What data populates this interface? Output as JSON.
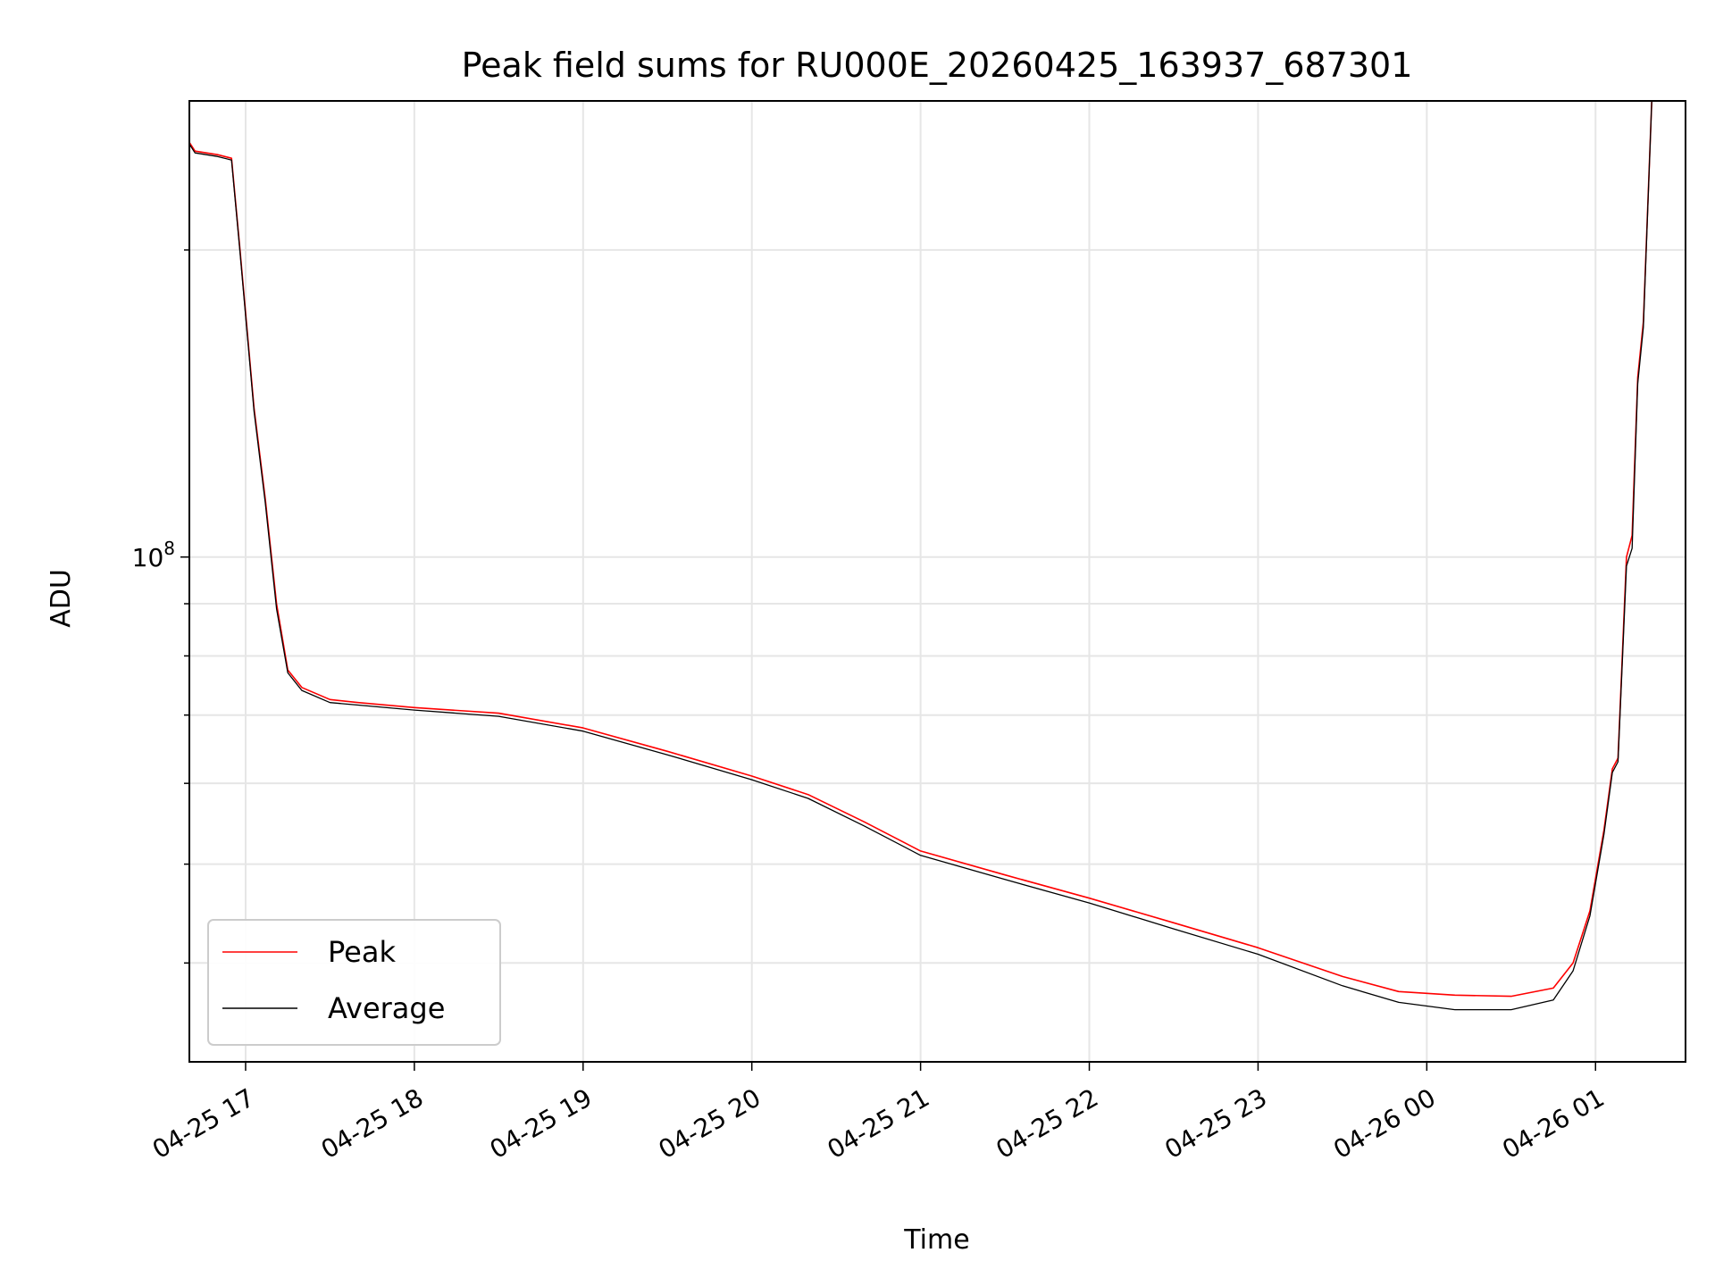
{
  "chart_data": {
    "type": "line",
    "title": "Peak field sums for RU000E_20260425_163937_687301",
    "xlabel": "Time",
    "ylabel": "ADU",
    "y_scale": "log",
    "grid": true,
    "legend_position": "lower-left",
    "xlim": [
      "2026-04-25 16:40",
      "2026-04-26 01:32"
    ],
    "ylim": [
      32000000,
      280000000
    ],
    "x_ticks": [
      {
        "t": "2026-04-25 17:00",
        "label": "04-25 17"
      },
      {
        "t": "2026-04-25 18:00",
        "label": "04-25 18"
      },
      {
        "t": "2026-04-25 19:00",
        "label": "04-25 19"
      },
      {
        "t": "2026-04-25 20:00",
        "label": "04-25 20"
      },
      {
        "t": "2026-04-25 21:00",
        "label": "04-25 21"
      },
      {
        "t": "2026-04-25 22:00",
        "label": "04-25 22"
      },
      {
        "t": "2026-04-25 23:00",
        "label": "04-25 23"
      },
      {
        "t": "2026-04-26 00:00",
        "label": "04-26 00"
      },
      {
        "t": "2026-04-26 01:00",
        "label": "04-26 01"
      }
    ],
    "y_major_ticks": [
      {
        "value": 100000000,
        "base": "10",
        "exp": "8"
      }
    ],
    "series": [
      {
        "name": "Peak",
        "color": "#ff0000",
        "points": [
          [
            "2026-04-25 16:40",
            255000000
          ],
          [
            "2026-04-25 16:42",
            250000000
          ],
          [
            "2026-04-25 16:50",
            248000000
          ],
          [
            "2026-04-25 16:55",
            246000000
          ],
          [
            "2026-04-25 16:58",
            200000000
          ],
          [
            "2026-04-25 17:03",
            140000000
          ],
          [
            "2026-04-25 17:07",
            114000000
          ],
          [
            "2026-04-25 17:11",
            90000000
          ],
          [
            "2026-04-25 17:15",
            77500000
          ],
          [
            "2026-04-25 17:20",
            74500000
          ],
          [
            "2026-04-25 17:30",
            72500000
          ],
          [
            "2026-04-25 17:40",
            72000000
          ],
          [
            "2026-04-25 18:00",
            71200000
          ],
          [
            "2026-04-25 18:30",
            70300000
          ],
          [
            "2026-04-25 19:00",
            68000000
          ],
          [
            "2026-04-25 19:30",
            64500000
          ],
          [
            "2026-04-25 20:00",
            61000000
          ],
          [
            "2026-04-25 20:20",
            58500000
          ],
          [
            "2026-04-25 20:40",
            55000000
          ],
          [
            "2026-04-25 21:00",
            51500000
          ],
          [
            "2026-04-25 21:30",
            48800000
          ],
          [
            "2026-04-25 22:00",
            46300000
          ],
          [
            "2026-04-25 22:30",
            43800000
          ],
          [
            "2026-04-25 23:00",
            41400000
          ],
          [
            "2026-04-25 23:30",
            38800000
          ],
          [
            "2026-04-25 23:50",
            37500000
          ],
          [
            "2026-04-26 00:10",
            37200000
          ],
          [
            "2026-04-26 00:30",
            37100000
          ],
          [
            "2026-04-26 00:45",
            37800000
          ],
          [
            "2026-04-26 00:52",
            40000000
          ],
          [
            "2026-04-26 00:58",
            45000000
          ],
          [
            "2026-04-26 01:03",
            54000000
          ],
          [
            "2026-04-26 01:06",
            62000000
          ],
          [
            "2026-04-26 01:08",
            63500000
          ],
          [
            "2026-04-26 01:11",
            100000000
          ],
          [
            "2026-04-26 01:13",
            105000000
          ],
          [
            "2026-04-26 01:15",
            150000000
          ],
          [
            "2026-04-26 01:17",
            170000000
          ],
          [
            "2026-04-26 01:20",
            280000000
          ]
        ]
      },
      {
        "name": "Average",
        "color": "#000000",
        "points": [
          [
            "2026-04-25 16:40",
            254000000
          ],
          [
            "2026-04-25 16:42",
            249000000
          ],
          [
            "2026-04-25 16:50",
            247000000
          ],
          [
            "2026-04-25 16:55",
            245000000
          ],
          [
            "2026-04-25 16:58",
            199000000
          ],
          [
            "2026-04-25 17:03",
            139000000
          ],
          [
            "2026-04-25 17:07",
            113000000
          ],
          [
            "2026-04-25 17:11",
            89000000
          ],
          [
            "2026-04-25 17:15",
            77000000
          ],
          [
            "2026-04-25 17:20",
            74000000
          ],
          [
            "2026-04-25 17:30",
            72000000
          ],
          [
            "2026-04-25 17:40",
            71600000
          ],
          [
            "2026-04-25 18:00",
            70800000
          ],
          [
            "2026-04-25 18:30",
            69800000
          ],
          [
            "2026-04-25 19:00",
            67500000
          ],
          [
            "2026-04-25 19:30",
            64000000
          ],
          [
            "2026-04-25 20:00",
            60500000
          ],
          [
            "2026-04-25 20:20",
            58000000
          ],
          [
            "2026-04-25 20:40",
            54500000
          ],
          [
            "2026-04-25 21:00",
            51000000
          ],
          [
            "2026-04-25 21:30",
            48300000
          ],
          [
            "2026-04-25 22:00",
            45800000
          ],
          [
            "2026-04-25 22:30",
            43200000
          ],
          [
            "2026-04-25 23:00",
            40800000
          ],
          [
            "2026-04-25 23:30",
            38000000
          ],
          [
            "2026-04-25 23:50",
            36600000
          ],
          [
            "2026-04-26 00:10",
            36000000
          ],
          [
            "2026-04-26 00:30",
            36000000
          ],
          [
            "2026-04-26 00:45",
            36800000
          ],
          [
            "2026-04-26 00:52",
            39300000
          ],
          [
            "2026-04-26 00:58",
            44500000
          ],
          [
            "2026-04-26 01:03",
            53500000
          ],
          [
            "2026-04-26 01:06",
            61500000
          ],
          [
            "2026-04-26 01:08",
            63000000
          ],
          [
            "2026-04-26 01:11",
            98000000
          ],
          [
            "2026-04-26 01:13",
            102000000
          ],
          [
            "2026-04-26 01:15",
            148000000
          ],
          [
            "2026-04-26 01:17",
            168000000
          ],
          [
            "2026-04-26 01:20",
            280000000
          ]
        ]
      }
    ]
  }
}
